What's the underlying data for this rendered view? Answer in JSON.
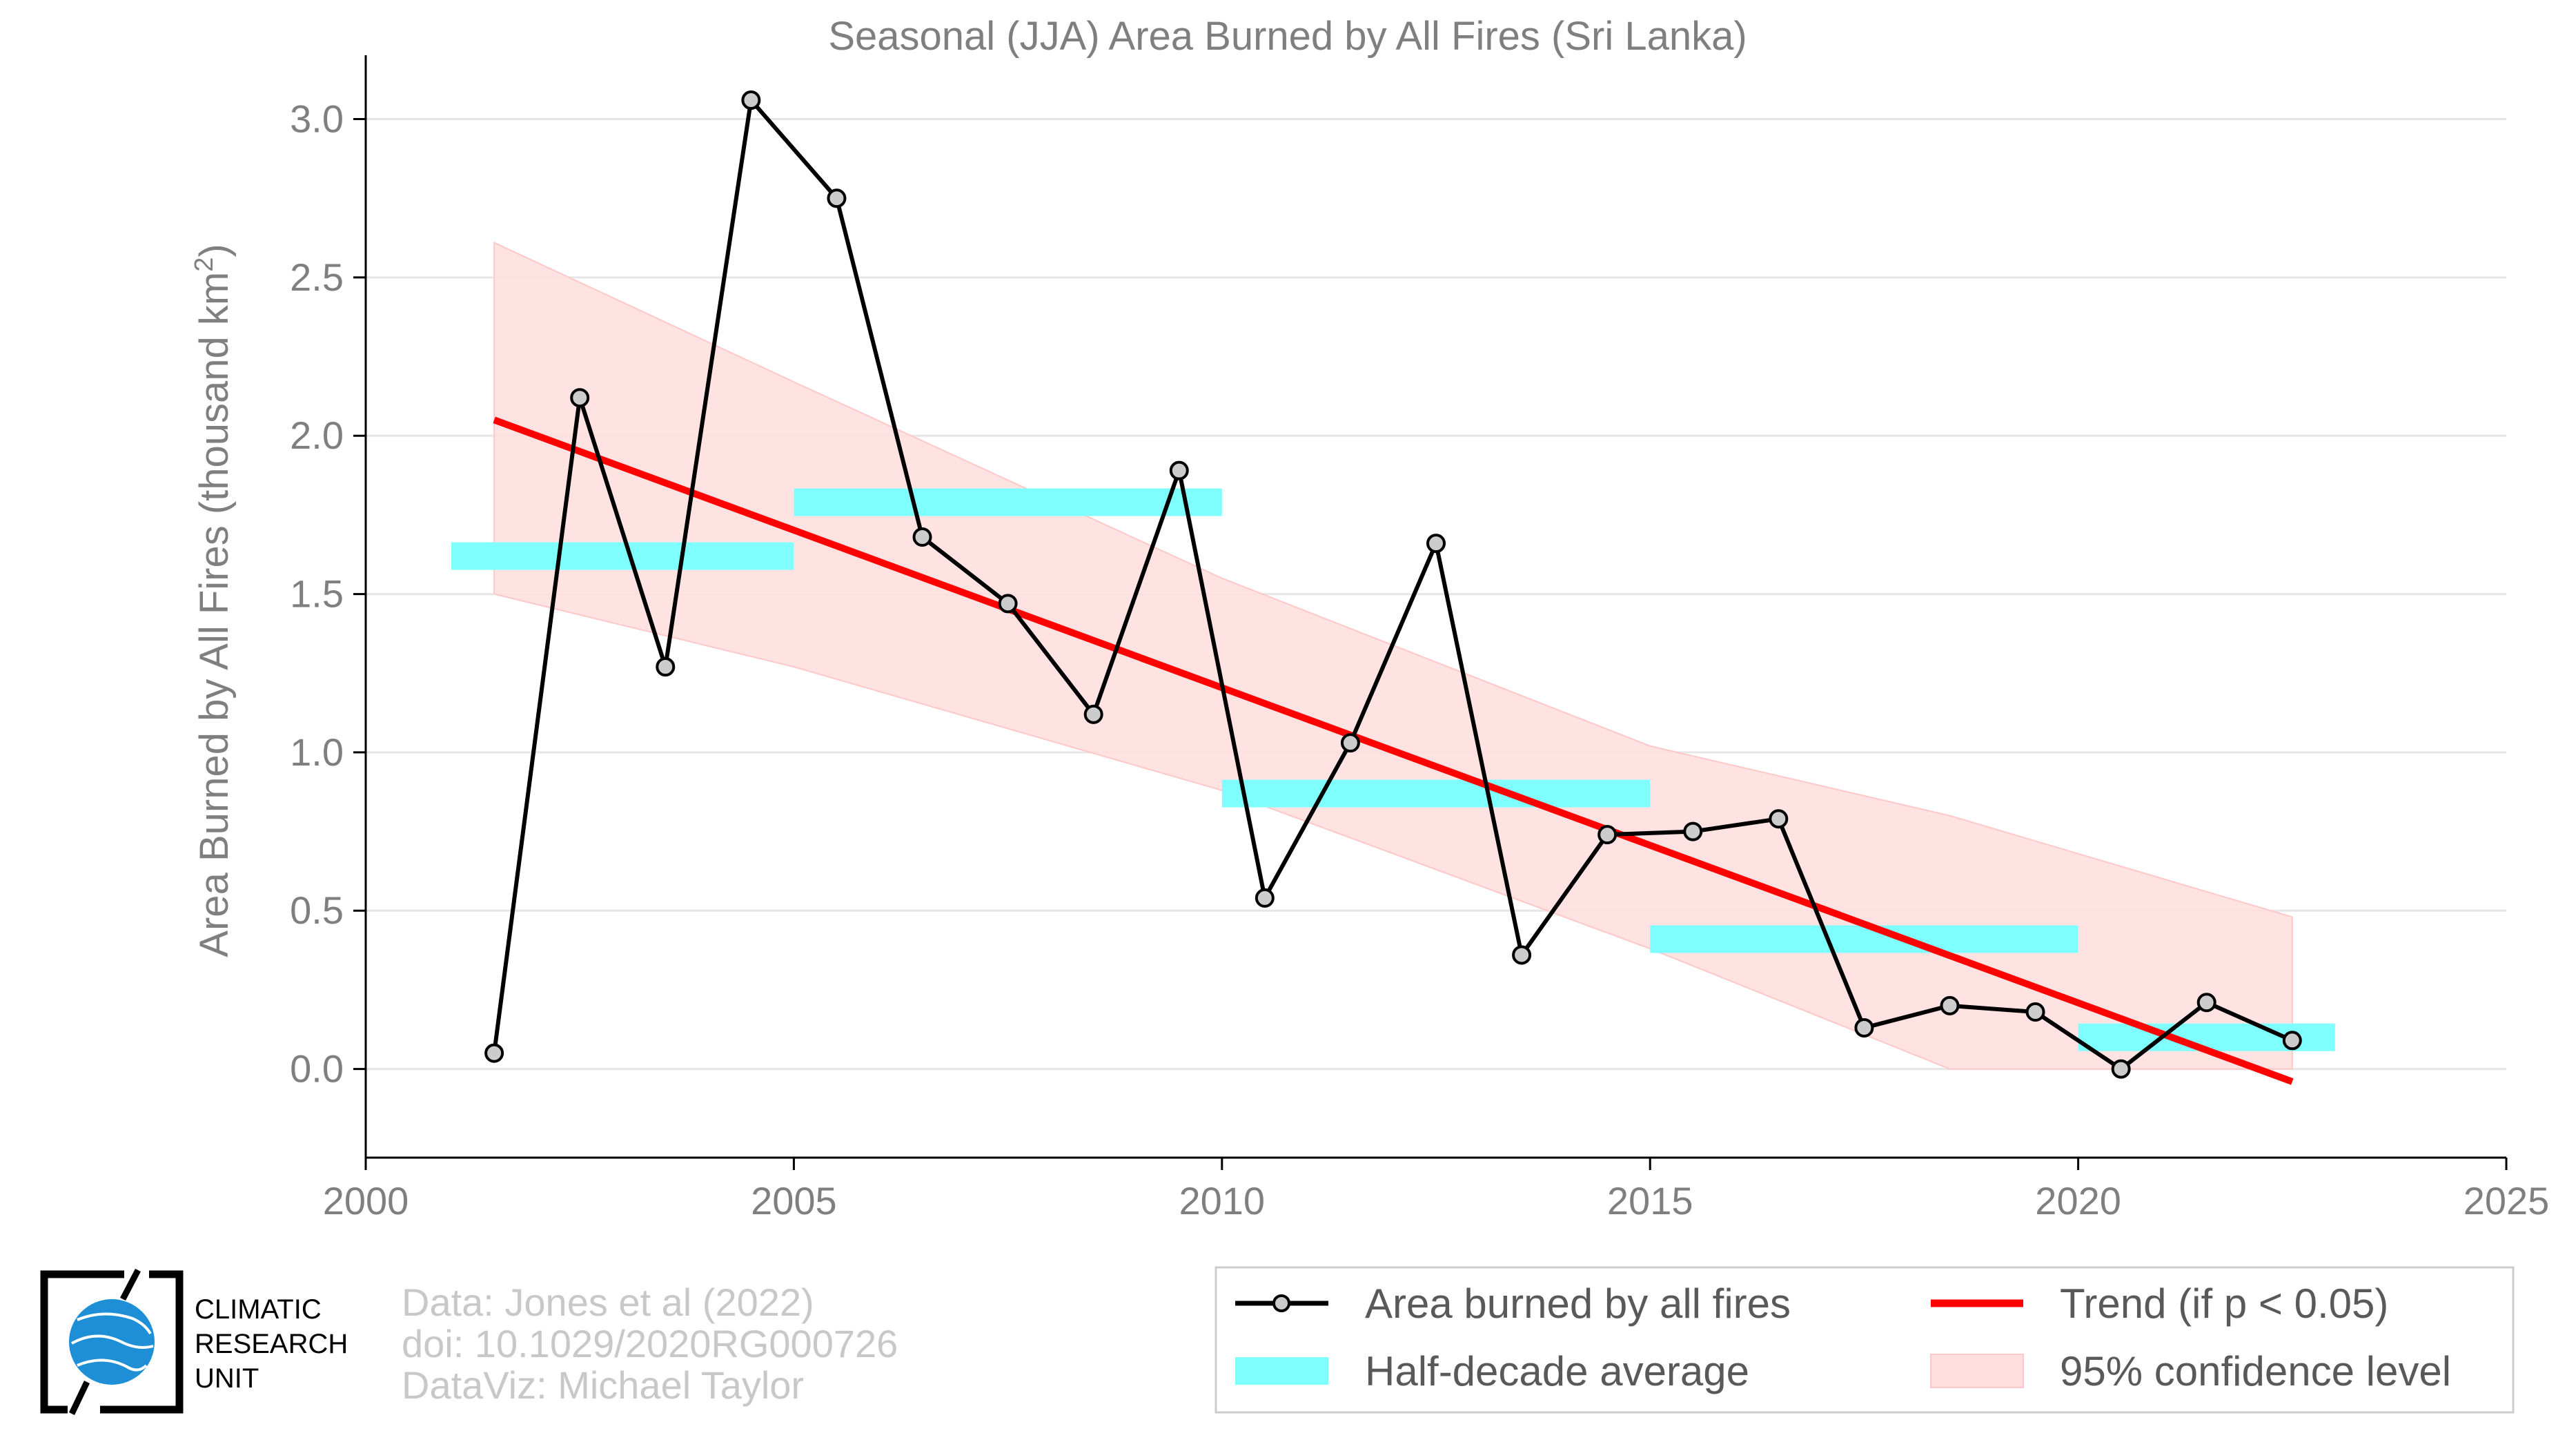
{
  "chart_data": {
    "type": "line",
    "title": "Seasonal (JJA) Area Burned by All Fires (Sri Lanka)",
    "ylabel": "Area Burned by All Fires (thousand km",
    "ylabel_sup": "2",
    "ylabel_end": ")",
    "xlim": [
      2000,
      2025
    ],
    "ylim": [
      -0.28,
      3.18
    ],
    "xticks": [
      2000,
      2005,
      2010,
      2015,
      2020,
      2025
    ],
    "yticks": [
      0.0,
      0.5,
      1.0,
      1.5,
      2.0,
      2.5,
      3.0
    ],
    "ytick_labels": [
      "0.0",
      "0.5",
      "1.0",
      "1.5",
      "2.0",
      "2.5",
      "3.0"
    ],
    "grid": true,
    "series": [
      {
        "name": "Area burned by all fires",
        "type": "line-marker",
        "color": "#000000",
        "x": [
          2001.5,
          2002.5,
          2003.5,
          2004.5,
          2005.5,
          2006.5,
          2007.5,
          2008.5,
          2009.5,
          2010.5,
          2011.5,
          2012.5,
          2013.5,
          2014.5,
          2015.5,
          2016.5,
          2017.5,
          2018.5,
          2019.5,
          2020.5,
          2021.5,
          2022.5
        ],
        "y": [
          0.05,
          2.12,
          1.27,
          3.06,
          2.75,
          1.68,
          1.47,
          1.12,
          1.89,
          0.54,
          1.03,
          1.66,
          0.36,
          0.74,
          0.75,
          0.79,
          0.13,
          0.2,
          0.18,
          0.0,
          0.21,
          0.09
        ]
      },
      {
        "name": "Half-decade average",
        "type": "segments",
        "color": "#80ffff",
        "segments": [
          {
            "x0": 2001.0,
            "x1": 2005.0,
            "y": 1.62
          },
          {
            "x0": 2005.0,
            "x1": 2010.0,
            "y": 1.79
          },
          {
            "x0": 2010.0,
            "x1": 2015.0,
            "y": 0.87
          },
          {
            "x0": 2015.0,
            "x1": 2020.0,
            "y": 0.41
          },
          {
            "x0": 2020.0,
            "x1": 2023.0,
            "y": 0.1
          }
        ]
      },
      {
        "name": "Trend (if p < 0.05)",
        "type": "line",
        "color": "#ff0000",
        "x": [
          2001.5,
          2022.5
        ],
        "y": [
          2.05,
          -0.04
        ]
      },
      {
        "name": "95% confidence level",
        "type": "band",
        "color": "#ffdede",
        "x": [
          2001.5,
          2005.0,
          2010.0,
          2015.0,
          2018.5,
          2022.5
        ],
        "upper": [
          2.61,
          2.17,
          1.55,
          1.02,
          0.8,
          0.48
        ],
        "lower": [
          1.5,
          1.27,
          0.88,
          0.38,
          0.0,
          0.0
        ]
      }
    ],
    "legend_position": "bottom-right",
    "legend": {
      "area": "Area burned by all fires",
      "half": "Half-decade average",
      "trend": "Trend (if p < 0.05)",
      "ci": "95% confidence level"
    }
  },
  "credits": {
    "line1": "Data: Jones et al (2022)",
    "line2": "doi: 10.1029/2020RG000726",
    "line3": "DataViz: Michael Taylor"
  },
  "logo": {
    "line1": "CLIMATIC",
    "line2": "RESEARCH",
    "line3": "UNIT"
  },
  "colors": {
    "axis": "#000000",
    "grid": "#e6e6e6",
    "text": "#7f7f7f",
    "marker_fill": "#cccccc",
    "logo_blue": "#1e8fd6"
  }
}
